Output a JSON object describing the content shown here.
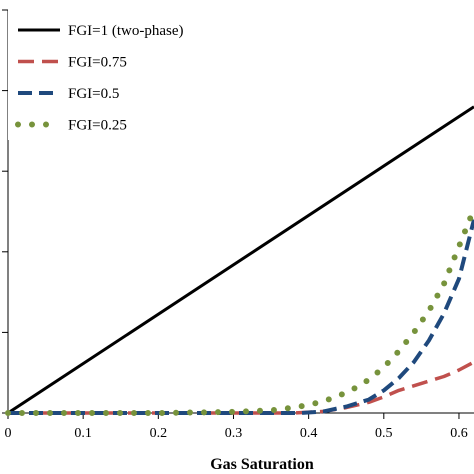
{
  "chart_data": {
    "type": "line",
    "xlabel": "Gas Saturation",
    "ylabel": "",
    "xlim": [
      0,
      0.62
    ],
    "ylim": [
      0,
      0.75
    ],
    "x_ticks": [
      "0",
      "0.1",
      "0.2",
      "0.3",
      "0.4",
      "0.5",
      "0.6"
    ],
    "legend_position": "top-left",
    "series": [
      {
        "name": "FGI=1 (two-phase)",
        "color": "#000000",
        "style": "solid",
        "x": [
          0.0,
          0.62
        ],
        "y": [
          0.0,
          0.57
        ]
      },
      {
        "name": "FGI=0.75",
        "color": "#c0504d",
        "style": "long-dash",
        "x": [
          0.0,
          0.1,
          0.2,
          0.3,
          0.38,
          0.42,
          0.45,
          0.48,
          0.5,
          0.52,
          0.55,
          0.58,
          0.6,
          0.62
        ],
        "y": [
          0.0,
          0.0,
          0.0,
          0.0,
          0.0,
          0.003,
          0.01,
          0.02,
          0.03,
          0.042,
          0.055,
          0.068,
          0.08,
          0.095
        ]
      },
      {
        "name": "FGI=0.5",
        "color": "#1f497d",
        "style": "dash",
        "x": [
          0.0,
          0.1,
          0.2,
          0.3,
          0.39,
          0.42,
          0.45,
          0.48,
          0.5,
          0.52,
          0.54,
          0.56,
          0.58,
          0.6,
          0.62
        ],
        "y": [
          0.0,
          0.0,
          0.0,
          0.0,
          0.0,
          0.003,
          0.012,
          0.025,
          0.042,
          0.065,
          0.095,
          0.135,
          0.185,
          0.25,
          0.36
        ]
      },
      {
        "name": "FGI=0.25",
        "color": "#77933c",
        "style": "dots",
        "x": [
          0.0,
          0.1,
          0.2,
          0.3,
          0.35,
          0.38,
          0.4,
          0.42,
          0.44,
          0.46,
          0.48,
          0.5,
          0.52,
          0.54,
          0.56,
          0.58,
          0.6,
          0.62
        ],
        "y": [
          0.0,
          0.0,
          0.0,
          0.002,
          0.005,
          0.01,
          0.015,
          0.022,
          0.032,
          0.045,
          0.062,
          0.085,
          0.115,
          0.15,
          0.19,
          0.24,
          0.31,
          0.38
        ]
      }
    ]
  }
}
